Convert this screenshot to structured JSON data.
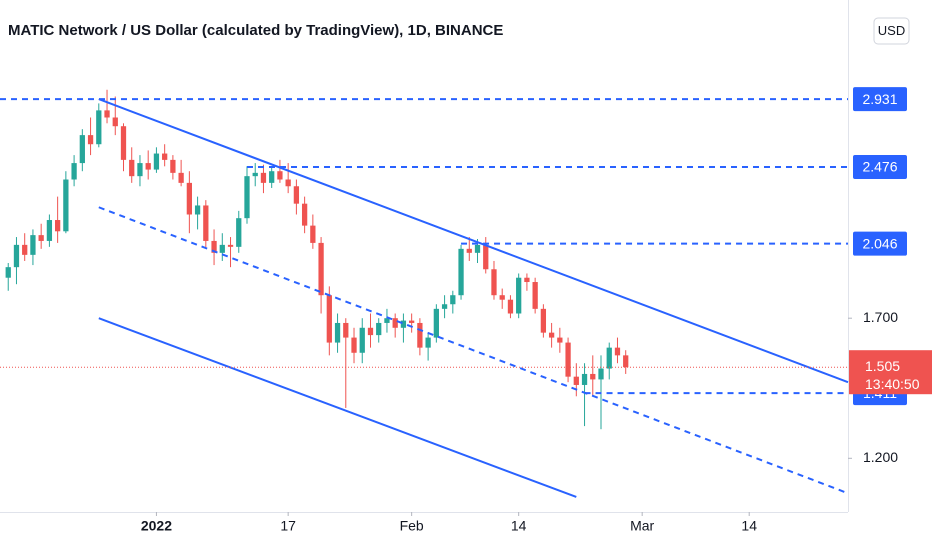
{
  "chart_data": {
    "type": "candlestick",
    "title": "MATIC Network / US Dollar (calculated by TradingView), 1D, BINANCE",
    "currency": "USD",
    "log_scale": true,
    "up_color": "#26a69a",
    "down_color": "#ef5350",
    "line_color": "#2962ff",
    "xlim": [
      "2021-12-13",
      "2022-03-26"
    ],
    "ylim": [
      1.05,
      3.75
    ],
    "yticks": [
      {
        "value": 1.2,
        "label": "1.200"
      },
      {
        "value": 1.7,
        "label": "1.700"
      }
    ],
    "xticks": [
      {
        "value": "2022-01-01",
        "label": "2022"
      },
      {
        "value": "2022-01-17",
        "label": "17"
      },
      {
        "value": "2022-02-01",
        "label": "Feb"
      },
      {
        "value": "2022-02-14",
        "label": "14"
      },
      {
        "value": "2022-03-01",
        "label": "Mar"
      },
      {
        "value": "2022-03-14",
        "label": "14"
      }
    ],
    "x": [
      "2021-12-14",
      "2021-12-15",
      "2021-12-16",
      "2021-12-17",
      "2021-12-18",
      "2021-12-19",
      "2021-12-20",
      "2021-12-21",
      "2021-12-22",
      "2021-12-23",
      "2021-12-24",
      "2021-12-25",
      "2021-12-26",
      "2021-12-27",
      "2021-12-28",
      "2021-12-29",
      "2021-12-30",
      "2021-12-31",
      "2022-01-01",
      "2022-01-02",
      "2022-01-03",
      "2022-01-04",
      "2022-01-05",
      "2022-01-06",
      "2022-01-07",
      "2022-01-08",
      "2022-01-09",
      "2022-01-10",
      "2022-01-11",
      "2022-01-12",
      "2022-01-13",
      "2022-01-14",
      "2022-01-15",
      "2022-01-16",
      "2022-01-17",
      "2022-01-18",
      "2022-01-19",
      "2022-01-20",
      "2022-01-21",
      "2022-01-22",
      "2022-01-23",
      "2022-01-24",
      "2022-01-25",
      "2022-01-26",
      "2022-01-27",
      "2022-01-28",
      "2022-01-29",
      "2022-01-30",
      "2022-01-31",
      "2022-02-01",
      "2022-02-02",
      "2022-02-03",
      "2022-02-04",
      "2022-02-05",
      "2022-02-06",
      "2022-02-07",
      "2022-02-08",
      "2022-02-09",
      "2022-02-10",
      "2022-02-11",
      "2022-02-12",
      "2022-02-13",
      "2022-02-14",
      "2022-02-15",
      "2022-02-16",
      "2022-02-17",
      "2022-02-18",
      "2022-02-19",
      "2022-02-20",
      "2022-02-21",
      "2022-02-22",
      "2022-02-23",
      "2022-02-24",
      "2022-02-25",
      "2022-02-26",
      "2022-02-27"
    ],
    "open": [
      1.88,
      1.93,
      2.04,
      1.99,
      2.09,
      2.06,
      2.17,
      2.11,
      2.4,
      2.5,
      2.68,
      2.62,
      2.85,
      2.8,
      2.74,
      2.52,
      2.42,
      2.5,
      2.46,
      2.56,
      2.52,
      2.44,
      2.38,
      2.2,
      2.25,
      2.06,
      2.0,
      2.04,
      2.03,
      2.18,
      2.42,
      2.44,
      2.38,
      2.45,
      2.4,
      2.36,
      2.26,
      2.14,
      2.05,
      1.8,
      1.6,
      1.68,
      1.62,
      1.56,
      1.66,
      1.63,
      1.68,
      1.7,
      1.66,
      1.69,
      1.68,
      1.58,
      1.62,
      1.74,
      1.76,
      1.8,
      2.02,
      2.0,
      2.04,
      1.92,
      1.8,
      1.78,
      1.72,
      1.88,
      1.86,
      1.74,
      1.64,
      1.62,
      1.6,
      1.47,
      1.44,
      1.48,
      1.46,
      1.5,
      1.58,
      1.55
    ],
    "high": [
      1.95,
      2.08,
      2.1,
      2.12,
      2.15,
      2.2,
      2.3,
      2.45,
      2.55,
      2.72,
      2.8,
      2.9,
      3.0,
      2.95,
      2.76,
      2.6,
      2.55,
      2.58,
      2.6,
      2.62,
      2.55,
      2.52,
      2.45,
      2.3,
      2.28,
      2.12,
      2.1,
      2.08,
      2.22,
      2.48,
      2.5,
      2.49,
      2.48,
      2.52,
      2.5,
      2.4,
      2.3,
      2.2,
      2.08,
      1.84,
      1.72,
      1.7,
      1.66,
      1.7,
      1.72,
      1.7,
      1.74,
      1.72,
      1.72,
      1.72,
      1.7,
      1.64,
      1.76,
      1.8,
      1.82,
      2.04,
      2.08,
      2.07,
      2.08,
      1.96,
      1.83,
      1.8,
      1.9,
      1.9,
      1.88,
      1.76,
      1.68,
      1.66,
      1.62,
      1.52,
      1.52,
      1.55,
      1.55,
      1.6,
      1.62,
      1.57
    ],
    "low": [
      1.82,
      1.85,
      1.96,
      1.94,
      2.02,
      2.03,
      2.05,
      2.1,
      2.36,
      2.45,
      2.55,
      2.6,
      2.76,
      2.68,
      2.45,
      2.38,
      2.36,
      2.4,
      2.44,
      2.48,
      2.4,
      2.36,
      2.1,
      2.12,
      2.02,
      1.94,
      1.96,
      1.93,
      2.0,
      2.15,
      2.36,
      2.32,
      2.35,
      2.38,
      2.32,
      2.2,
      2.1,
      2.02,
      1.72,
      1.55,
      1.56,
      1.36,
      1.52,
      1.52,
      1.58,
      1.6,
      1.64,
      1.62,
      1.6,
      1.64,
      1.55,
      1.53,
      1.6,
      1.7,
      1.72,
      1.78,
      1.96,
      1.95,
      1.9,
      1.78,
      1.74,
      1.7,
      1.7,
      1.82,
      1.72,
      1.62,
      1.58,
      1.56,
      1.45,
      1.4,
      1.3,
      1.4,
      1.29,
      1.46,
      1.52,
      1.48
    ],
    "close": [
      1.93,
      2.04,
      1.99,
      2.09,
      2.06,
      2.17,
      2.11,
      2.4,
      2.5,
      2.68,
      2.62,
      2.85,
      2.8,
      2.74,
      2.52,
      2.42,
      2.5,
      2.46,
      2.56,
      2.52,
      2.44,
      2.38,
      2.2,
      2.25,
      2.06,
      2.0,
      2.04,
      2.03,
      2.18,
      2.42,
      2.44,
      2.38,
      2.45,
      2.4,
      2.36,
      2.26,
      2.14,
      2.05,
      1.8,
      1.6,
      1.68,
      1.62,
      1.56,
      1.66,
      1.63,
      1.68,
      1.7,
      1.66,
      1.69,
      1.68,
      1.58,
      1.62,
      1.74,
      1.76,
      1.8,
      2.02,
      2.0,
      2.04,
      1.92,
      1.8,
      1.78,
      1.72,
      1.88,
      1.86,
      1.74,
      1.64,
      1.62,
      1.6,
      1.47,
      1.44,
      1.48,
      1.46,
      1.5,
      1.58,
      1.55,
      1.505
    ],
    "last_price": {
      "value": 1.505,
      "label": "1.505",
      "countdown": "13:40:50",
      "color": "#ef5350"
    },
    "horizontal_lines": [
      {
        "value": 2.931,
        "label": "2.931",
        "start": "2021-12-13"
      },
      {
        "value": 2.476,
        "label": "2.476",
        "start": "2022-01-12"
      },
      {
        "value": 2.046,
        "label": "2.046",
        "start": "2022-02-07"
      },
      {
        "value": 1.411,
        "label": "1.411",
        "start": "2022-02-22"
      }
    ],
    "trend_lines": [
      {
        "style": "solid",
        "x": [
          "2021-12-25",
          "2022-03-26"
        ],
        "y": [
          2.931,
          1.45
        ]
      },
      {
        "style": "dashed",
        "x": [
          "2021-12-25",
          "2022-03-26"
        ],
        "y": [
          2.24,
          1.1
        ]
      },
      {
        "style": "solid",
        "x": [
          "2021-12-25",
          "2022-02-21"
        ],
        "y": [
          1.7,
          1.09
        ]
      }
    ]
  }
}
